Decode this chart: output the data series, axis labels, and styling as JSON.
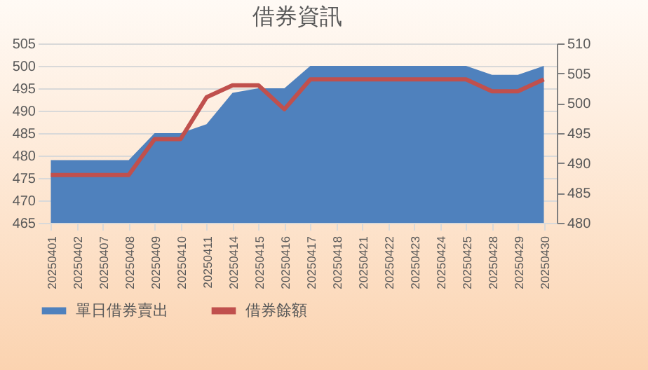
{
  "chart_data": {
    "type": "area",
    "title": "借券資訊",
    "categories": [
      "20250401",
      "20250402",
      "20250407",
      "20250408",
      "20250409",
      "20250410",
      "20250411",
      "20250414",
      "20250415",
      "20250416",
      "20250417",
      "20250418",
      "20250421",
      "20250422",
      "20250423",
      "20250424",
      "20250425",
      "20250428",
      "20250429",
      "20250430"
    ],
    "series": [
      {
        "name": "單日借券賣出",
        "color": "#4f81bd",
        "values": [
          479,
          479,
          479,
          479,
          485,
          485,
          487,
          494,
          495,
          495,
          500,
          500,
          500,
          500,
          500,
          500,
          500,
          498,
          498,
          500
        ]
      },
      {
        "name": "借券餘額",
        "type": "line",
        "axis": "y2",
        "color": "#c0504d",
        "values": [
          488,
          488,
          488,
          488,
          494,
          494,
          501,
          503,
          503,
          499,
          504,
          504,
          504,
          504,
          504,
          504,
          504,
          502,
          502,
          504
        ]
      }
    ],
    "ylim": [
      465,
      505
    ],
    "yticks": [
      465,
      470,
      475,
      480,
      485,
      490,
      495,
      500,
      505
    ],
    "y2lim": [
      480,
      510
    ],
    "y2ticks": [
      480,
      485,
      490,
      495,
      500,
      505,
      510
    ],
    "grid": "y",
    "legend": "bottom"
  }
}
